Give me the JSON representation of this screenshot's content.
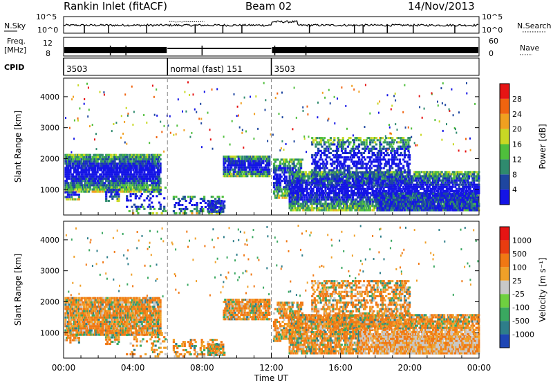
{
  "header": {
    "station": "Rankin Inlet (fitACF)",
    "beam": "Beam 02",
    "date": "14/Nov/2013"
  },
  "panels": {
    "nsky": {
      "left_label": "N.Sky",
      "left_ticks": [
        "10^5",
        "10^0"
      ],
      "right_ticks": [
        "10^5",
        "10^0"
      ],
      "right_label": "N.Search"
    },
    "freq": {
      "left_label_line1": "Freq.",
      "left_label_line2": "[MHz]",
      "left_ticks": [
        "12",
        "8"
      ],
      "right_ticks": [
        "60",
        "0"
      ],
      "right_label": "Nave"
    },
    "cpid": {
      "label": "CPID",
      "segments": [
        {
          "start_hour": 0.0,
          "end_hour": 6.0,
          "text": "3503"
        },
        {
          "start_hour": 6.0,
          "end_hour": 12.0,
          "text": "normal (fast) 151"
        },
        {
          "start_hour": 12.0,
          "end_hour": 24.0,
          "text": "3503"
        }
      ]
    }
  },
  "chart_data": [
    {
      "type": "heatmap",
      "name": "power",
      "ylabel": "Slant Range [km]",
      "ylim": [
        180,
        4600
      ],
      "yticks": [
        "1000",
        "2000",
        "3000",
        "4000"
      ],
      "xlim_hours": [
        0,
        24
      ],
      "colorbar": {
        "label": "Power [dB]",
        "ticks": [
          "4",
          "8",
          "12",
          "16",
          "20",
          "24",
          "28"
        ],
        "colors": [
          "#1414e6",
          "#1e46a0",
          "#2f8a6e",
          "#4fbf3c",
          "#c8d824",
          "#f0a020",
          "#f06410",
          "#e61414"
        ]
      }
    },
    {
      "type": "heatmap",
      "name": "velocity",
      "ylabel": "Slant Range [km]",
      "ylim": [
        180,
        4600
      ],
      "yticks": [
        "1000",
        "2000",
        "3000",
        "4000"
      ],
      "xlim_hours": [
        0,
        24
      ],
      "colorbar": {
        "label": "Velocity [m s⁻¹]",
        "ticks": [
          "1000",
          "500",
          "100",
          "25",
          "-25",
          "-100",
          "-500",
          "-1000"
        ],
        "colors": [
          "#1e46b4",
          "#2e7e8a",
          "#3aa860",
          "#6fd040",
          "#c8c8c8",
          "#f0a028",
          "#f07814",
          "#e83c10",
          "#e61414"
        ]
      }
    }
  ],
  "xaxis": {
    "ticks": [
      "00:00",
      "04:00",
      "08:00",
      "12:00",
      "16:00",
      "20:00",
      "00:00"
    ],
    "label": "Time UT"
  }
}
